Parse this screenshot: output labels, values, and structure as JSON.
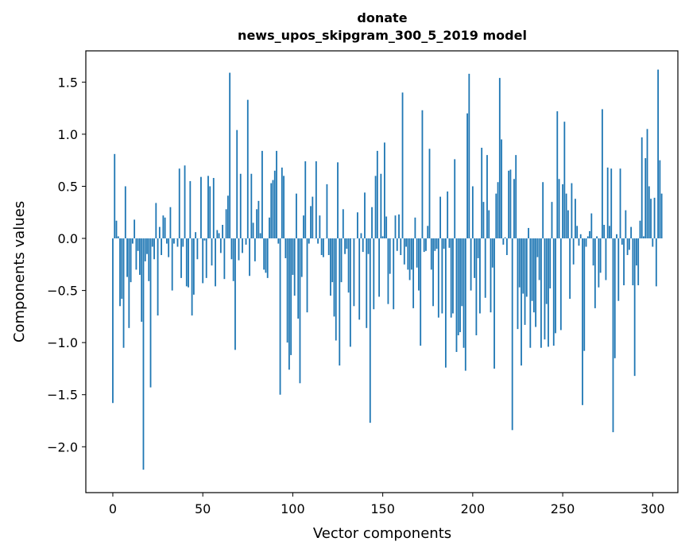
{
  "chart_data": {
    "type": "bar",
    "title": "donate",
    "subtitle": "news_upos_skipgram_300_5_2019 model",
    "xlabel": "Vector components",
    "ylabel": "Components values",
    "xlim": [
      -15,
      314
    ],
    "ylim": [
      -2.44,
      1.8
    ],
    "xticks": [
      0,
      50,
      100,
      150,
      200,
      250,
      300
    ],
    "yticks": [
      -2.0,
      -1.5,
      -1.0,
      -0.5,
      0.0,
      0.5,
      1.0,
      1.5
    ],
    "xtick_labels": [
      "0",
      "50",
      "100",
      "150",
      "200",
      "250",
      "300"
    ],
    "ytick_labels": [
      "−2.0",
      "−1.5",
      "−1.0",
      "−0.5",
      "0.0",
      "0.5",
      "1.0",
      "1.5"
    ],
    "bar_color": "#1f77b4",
    "values": [
      -1.58,
      0.81,
      0.17,
      0.02,
      -0.65,
      -0.58,
      -1.05,
      0.5,
      -0.37,
      -0.86,
      -0.42,
      -0.05,
      0.18,
      -0.3,
      -0.12,
      -0.35,
      -0.8,
      -2.22,
      -0.22,
      -0.15,
      -0.41,
      -1.43,
      -0.08,
      -0.2,
      0.34,
      -0.74,
      0.11,
      -0.16,
      0.22,
      0.2,
      -0.05,
      -0.18,
      0.3,
      -0.5,
      -0.05,
      0.0,
      -0.08,
      0.67,
      -0.38,
      -0.08,
      0.7,
      -0.46,
      -0.47,
      0.55,
      -0.74,
      -0.54,
      0.06,
      -0.2,
      0.0,
      0.59,
      -0.43,
      -0.02,
      -0.38,
      0.6,
      0.5,
      -0.26,
      0.58,
      -0.46,
      0.08,
      0.05,
      -0.14,
      0.13,
      -0.39,
      0.28,
      0.41,
      1.59,
      -0.2,
      -0.41,
      -1.07,
      1.04,
      -0.21,
      0.62,
      -0.14,
      0.0,
      -0.06,
      1.33,
      -0.36,
      0.62,
      0.15,
      -0.22,
      0.28,
      0.36,
      0.05,
      0.84,
      -0.3,
      -0.33,
      -0.38,
      0.2,
      0.53,
      0.56,
      0.65,
      0.84,
      -0.05,
      -1.5,
      0.68,
      0.6,
      -0.19,
      -1.0,
      -1.26,
      -1.12,
      -0.35,
      -0.55,
      0.43,
      -0.77,
      -1.39,
      -0.37,
      0.22,
      0.74,
      -0.71,
      -0.05,
      0.31,
      0.4,
      0.0,
      0.74,
      -0.05,
      0.22,
      -0.16,
      -0.18,
      0.0,
      0.52,
      -0.16,
      -0.55,
      -0.42,
      -0.75,
      -0.98,
      0.73,
      -1.22,
      -0.42,
      0.28,
      -0.15,
      -0.1,
      -0.52,
      -1.04,
      0.0,
      -0.65,
      0.0,
      0.25,
      -0.78,
      0.05,
      -0.13,
      0.44,
      -0.86,
      -0.15,
      -1.77,
      0.3,
      -0.68,
      0.6,
      0.84,
      -0.56,
      0.62,
      0.02,
      0.92,
      0.21,
      -0.63,
      -0.34,
      0.0,
      -0.68,
      0.22,
      -0.12,
      0.23,
      -0.16,
      1.4,
      -0.25,
      -0.08,
      -0.3,
      -0.4,
      -0.3,
      -0.67,
      0.2,
      -0.28,
      -0.5,
      -1.03,
      1.23,
      -0.13,
      -0.12,
      0.12,
      0.86,
      -0.3,
      -0.65,
      -0.12,
      -0.1,
      -0.76,
      0.4,
      -0.72,
      -0.1,
      -1.24,
      0.45,
      -0.09,
      -0.76,
      -0.72,
      0.76,
      -1.09,
      -0.93,
      -0.9,
      -0.65,
      -1.05,
      -1.27,
      1.2,
      1.58,
      -0.5,
      0.5,
      -0.38,
      -0.93,
      -0.19,
      -0.72,
      0.87,
      0.35,
      -0.57,
      0.8,
      0.27,
      -0.71,
      -0.28,
      -1.25,
      0.43,
      0.54,
      1.54,
      0.95,
      -0.06,
      0.01,
      -0.16,
      0.65,
      0.66,
      -1.84,
      0.57,
      0.8,
      -0.87,
      -0.47,
      -1.22,
      -0.53,
      -0.83,
      -0.56,
      0.1,
      -1.05,
      -0.6,
      -0.71,
      -0.85,
      -0.18,
      -0.4,
      -1.05,
      0.54,
      -0.97,
      -0.63,
      -1.04,
      -0.48,
      0.35,
      -1.03,
      -0.91,
      1.22,
      0.57,
      -0.88,
      0.52,
      1.12,
      0.43,
      0.27,
      -0.58,
      0.53,
      -0.25,
      0.38,
      0.12,
      -0.07,
      0.04,
      -1.6,
      -1.08,
      -0.08,
      0.02,
      0.07,
      0.24,
      -0.26,
      -0.67,
      0.02,
      -0.47,
      -0.33,
      1.24,
      0.13,
      -0.4,
      0.68,
      0.12,
      0.67,
      -1.86,
      -1.15,
      0.04,
      -0.6,
      0.67,
      -0.06,
      -0.45,
      0.27,
      -0.16,
      -0.11,
      0.11,
      -0.45,
      -1.32,
      -0.26,
      -0.45,
      0.17,
      0.97,
      0.02,
      0.77,
      1.05,
      0.5,
      0.38,
      -0.08,
      0.39,
      -0.46,
      1.62,
      0.75,
      0.43
    ]
  }
}
